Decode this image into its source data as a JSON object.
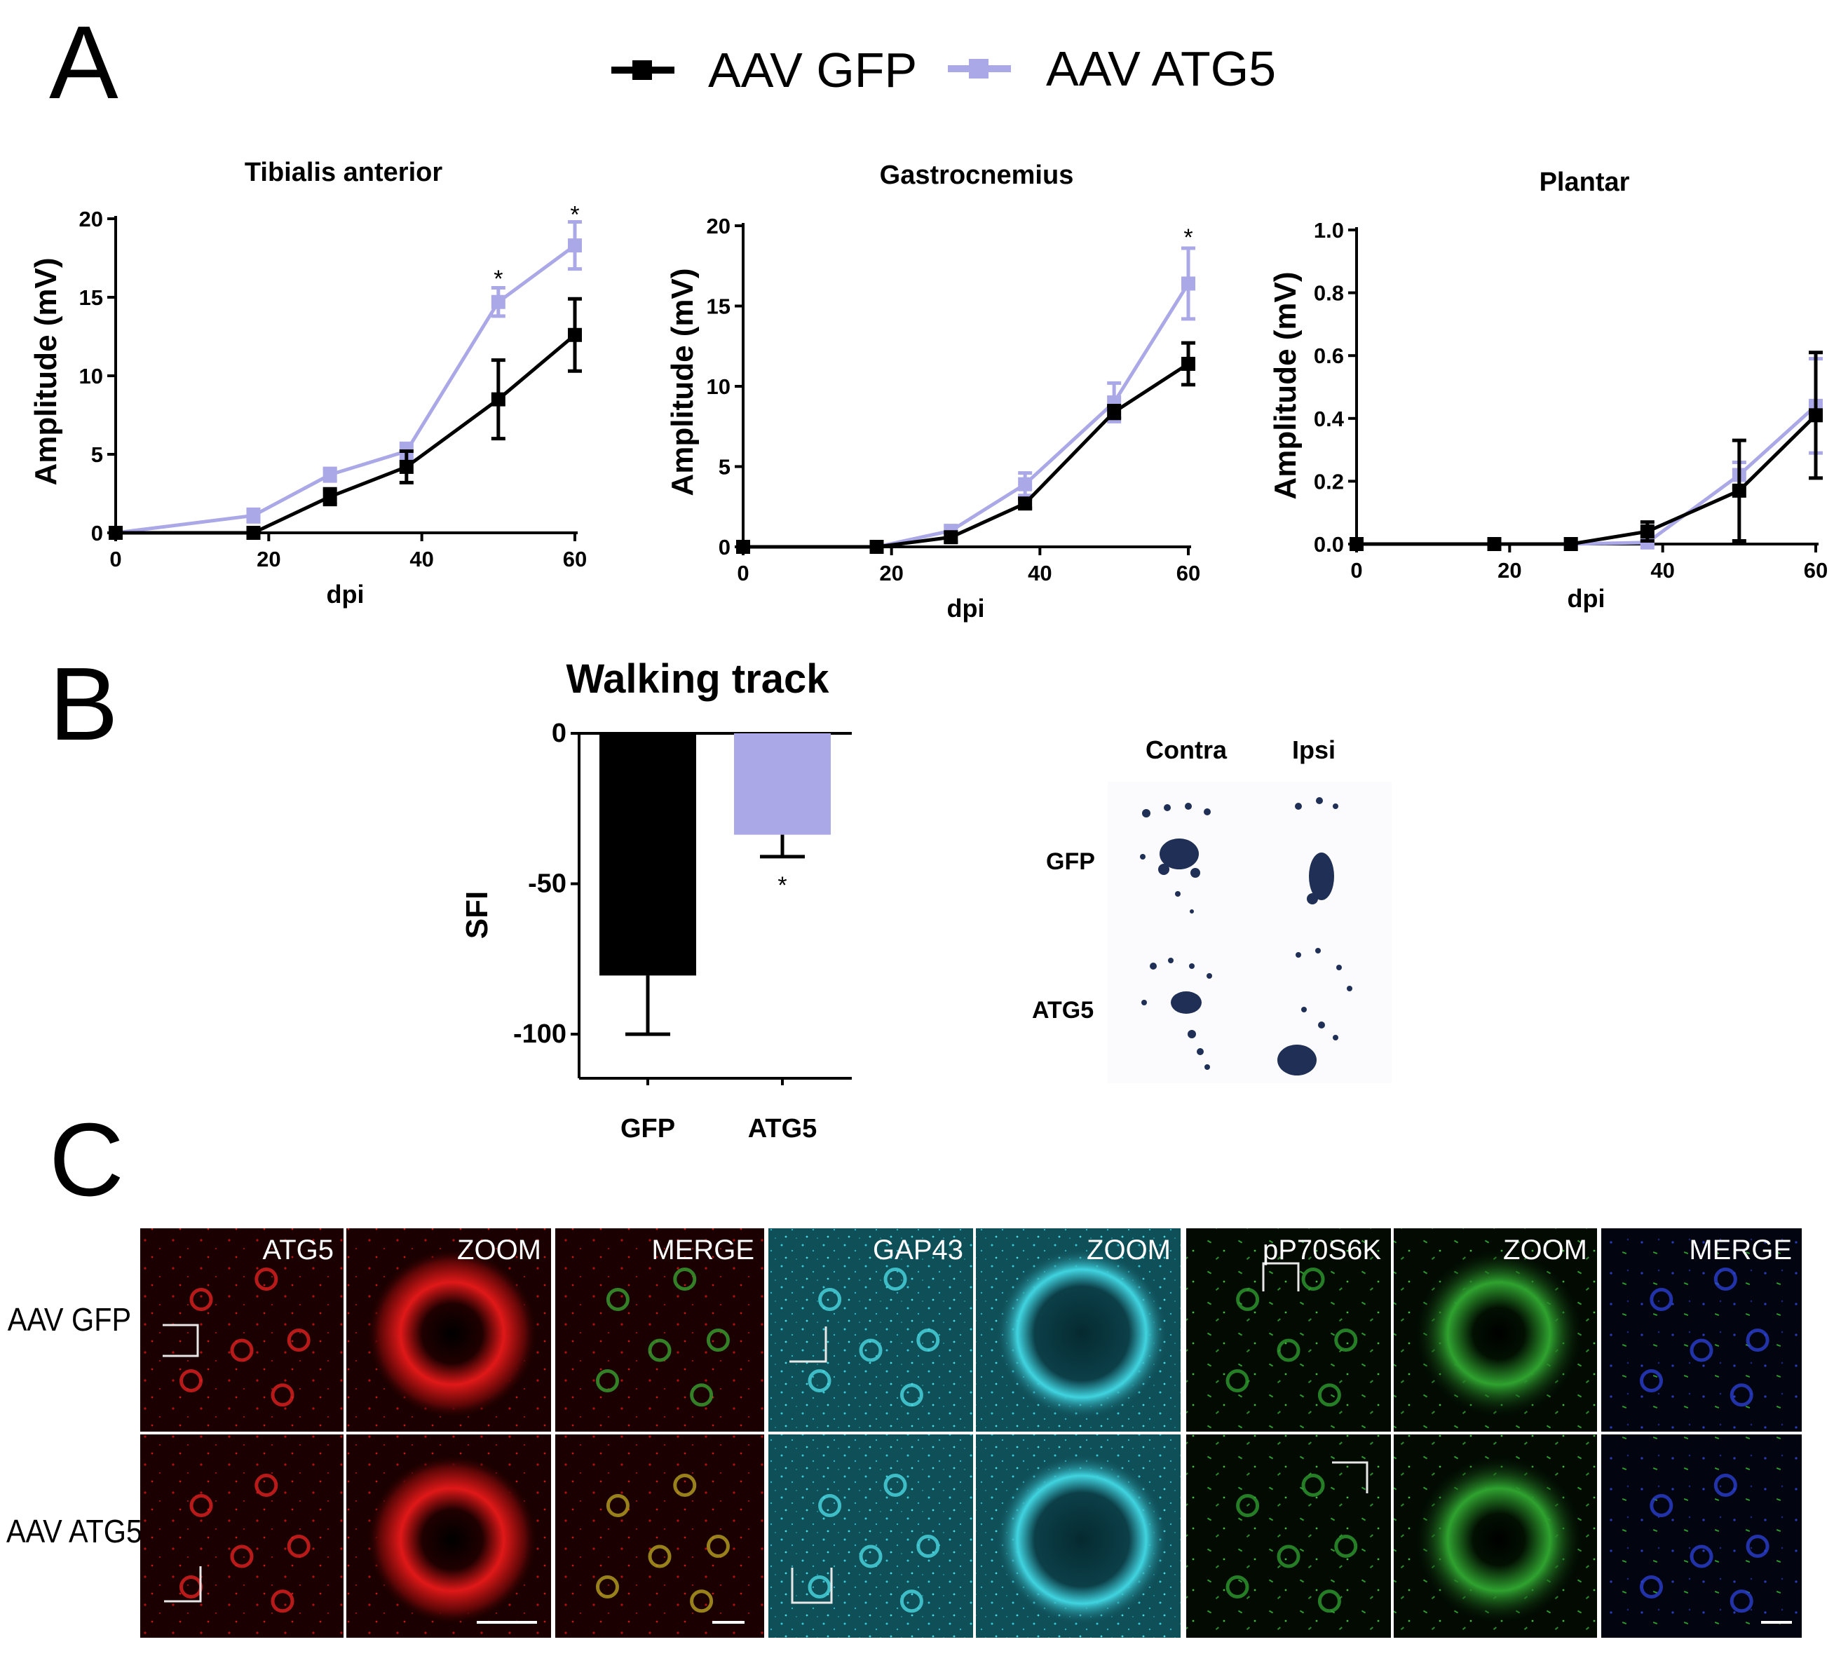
{
  "panels": {
    "A": "A",
    "B": "B",
    "C": "C"
  },
  "legend": {
    "items": [
      {
        "label": "AAV GFP",
        "color": "#000000"
      },
      {
        "label": "AAV ATG5",
        "color": "#aaa8e6"
      }
    ]
  },
  "colors": {
    "gfp": "#000000",
    "atg5": "#aaa8e6"
  },
  "chart_data": [
    {
      "type": "line",
      "title": "Tibialis anterior",
      "xlabel": "dpi",
      "ylabel": "Amplitude (mV)",
      "xlim": [
        0,
        60
      ],
      "ylim": [
        0,
        20
      ],
      "xticks": [
        0,
        20,
        40,
        60
      ],
      "yticks": [
        0,
        5,
        10,
        15,
        20
      ],
      "ytick_labels": [
        "0",
        "5",
        "10",
        "15",
        "20"
      ],
      "significance": [
        {
          "x": 50,
          "y": 16.2,
          "label": "*"
        },
        {
          "x": 60,
          "y": 20.3,
          "label": "*"
        }
      ],
      "series": [
        {
          "name": "AAV GFP",
          "key": "gfp",
          "x": [
            0,
            18,
            28,
            38,
            50,
            60
          ],
          "y": [
            0,
            0,
            2.3,
            4.2,
            8.5,
            12.6
          ],
          "err": [
            0,
            0,
            0.5,
            1.0,
            2.5,
            2.3
          ]
        },
        {
          "name": "AAV ATG5",
          "key": "atg5",
          "x": [
            0,
            18,
            28,
            38,
            50,
            60
          ],
          "y": [
            0,
            1.1,
            3.7,
            5.2,
            14.7,
            18.3
          ],
          "err": [
            0,
            0.4,
            0.4,
            0.5,
            0.9,
            1.5
          ]
        }
      ]
    },
    {
      "type": "line",
      "title": "Gastrocnemius",
      "xlabel": "dpi",
      "ylabel": "Amplitude (mV)",
      "xlim": [
        0,
        60
      ],
      "ylim": [
        0,
        20
      ],
      "xticks": [
        0,
        20,
        40,
        60
      ],
      "yticks": [
        0,
        5,
        10,
        15,
        20
      ],
      "ytick_labels": [
        "0",
        "5",
        "10",
        "15",
        "20"
      ],
      "significance": [
        {
          "x": 60,
          "y": 19.3,
          "label": "*"
        }
      ],
      "series": [
        {
          "name": "AAV GFP",
          "key": "gfp",
          "x": [
            0,
            18,
            28,
            38,
            50,
            60
          ],
          "y": [
            0,
            0,
            0.6,
            2.7,
            8.4,
            11.4
          ],
          "err": [
            0,
            0,
            0.3,
            0.3,
            0.4,
            1.3
          ]
        },
        {
          "name": "AAV ATG5",
          "key": "atg5",
          "x": [
            0,
            18,
            28,
            38,
            50,
            60
          ],
          "y": [
            0,
            0,
            1.0,
            3.9,
            9.0,
            16.4
          ],
          "err": [
            0,
            0,
            0.3,
            0.7,
            1.2,
            2.2
          ]
        }
      ]
    },
    {
      "type": "line",
      "title": "Plantar",
      "xlabel": "dpi",
      "ylabel": "Amplitude (mV)",
      "xlim": [
        0,
        60
      ],
      "ylim": [
        0,
        1
      ],
      "xticks": [
        0,
        20,
        40,
        60
      ],
      "yticks": [
        0,
        0.2,
        0.4,
        0.6,
        0.8,
        1.0
      ],
      "ytick_labels": [
        "0.0",
        "0.2",
        "0.4",
        "0.6",
        "0.8",
        "1.0"
      ],
      "significance": [],
      "series": [
        {
          "name": "AAV GFP",
          "key": "gfp",
          "x": [
            0,
            18,
            28,
            38,
            50,
            60
          ],
          "y": [
            0,
            0,
            0,
            0.04,
            0.17,
            0.41
          ],
          "err": [
            0,
            0,
            0,
            0.03,
            0.16,
            0.2
          ]
        },
        {
          "name": "AAV ATG5",
          "key": "atg5",
          "x": [
            0,
            18,
            28,
            38,
            50,
            60
          ],
          "y": [
            0,
            0,
            0,
            0.005,
            0.22,
            0.44
          ],
          "err": [
            0,
            0,
            0,
            0.01,
            0.04,
            0.15
          ]
        }
      ]
    },
    {
      "type": "bar",
      "title": "Walking track",
      "ylabel": "SFI",
      "ylim": [
        -110,
        0
      ],
      "yticks": [
        0,
        -50,
        -100
      ],
      "ytick_labels": [
        "0",
        "-50",
        "-100"
      ],
      "categories": [
        "GFP",
        "ATG5"
      ],
      "values": [
        -80.5,
        -33.7
      ],
      "err": [
        19.5,
        7.3
      ],
      "colors": [
        "#000000",
        "#aaa8e6"
      ],
      "significance": [
        {
          "category": "ATG5",
          "label": "*"
        }
      ]
    }
  ],
  "footprints": {
    "columns": [
      "Contra",
      "Ipsi"
    ],
    "rows": [
      "GFP",
      "ATG5"
    ]
  },
  "micro": {
    "row_labels": [
      "AAV GFP",
      "AAV ATG5"
    ],
    "columns": [
      {
        "label": "ATG5",
        "tint": "red"
      },
      {
        "label": "ZOOM",
        "tint": "red"
      },
      {
        "label": "MERGE",
        "tint": "redgreen"
      },
      {
        "label": "GAP43",
        "tint": "cyan"
      },
      {
        "label": "ZOOM",
        "tint": "cyan"
      },
      {
        "label": "pP70S6K",
        "tint": "green"
      },
      {
        "label": "ZOOM",
        "tint": "green"
      },
      {
        "label": "MERGE",
        "tint": "bluegreen"
      }
    ]
  }
}
